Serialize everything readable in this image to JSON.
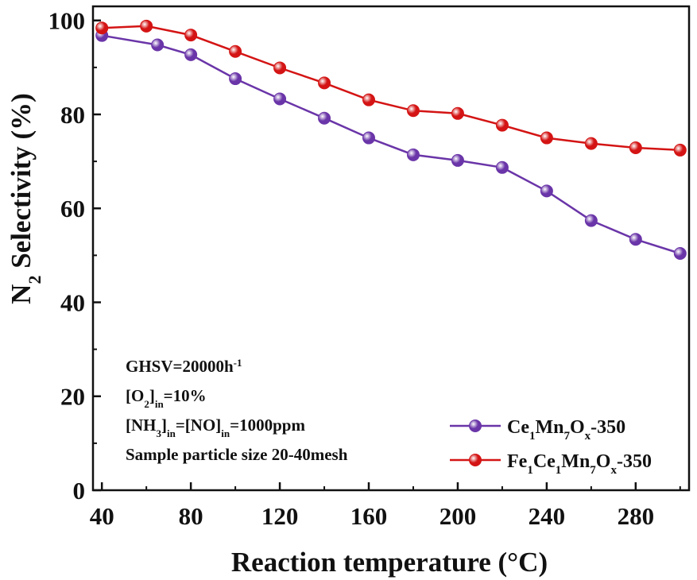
{
  "chart_data": {
    "type": "line",
    "xlabel": "Reaction temperature (°C)",
    "ylabel_main": "N",
    "ylabel_sub": "2",
    "ylabel_rest": " Selectivity (%)",
    "xlim": [
      36,
      304
    ],
    "ylim": [
      0,
      103
    ],
    "xticks": [
      40,
      80,
      120,
      160,
      200,
      240,
      280
    ],
    "yticks": [
      0,
      20,
      40,
      60,
      80,
      100
    ],
    "legend_position": "bottom-right",
    "grid": false,
    "x": [
      40,
      60,
      80,
      100,
      120,
      140,
      160,
      180,
      200,
      220,
      240,
      260,
      280,
      300
    ],
    "series": [
      {
        "id": "ce",
        "legend": [
          [
            "Ce",
            ""
          ],
          [
            "1",
            "sub"
          ],
          [
            "Mn",
            ""
          ],
          [
            "7",
            "sub"
          ],
          [
            "O",
            ""
          ],
          [
            "x",
            "sub"
          ],
          [
            "-350",
            ""
          ]
        ],
        "color": "#6a35a8",
        "x": [
          40,
          65,
          80,
          100,
          120,
          140,
          160,
          180,
          200,
          220,
          240,
          260,
          280,
          300
        ],
        "values": [
          96.8,
          94.8,
          92.7,
          87.6,
          83.3,
          79.2,
          75.0,
          71.4,
          70.2,
          68.7,
          63.7,
          57.4,
          53.4,
          50.4
        ]
      },
      {
        "id": "fe",
        "legend": [
          [
            "Fe",
            ""
          ],
          [
            "1",
            "sub"
          ],
          [
            "Ce",
            ""
          ],
          [
            "1",
            "sub"
          ],
          [
            "Mn",
            ""
          ],
          [
            "7",
            "sub"
          ],
          [
            "O",
            ""
          ],
          [
            "x",
            "sub"
          ],
          [
            "-350",
            ""
          ]
        ],
        "color": "#d41414",
        "x": [
          40,
          60,
          80,
          100,
          120,
          140,
          160,
          180,
          200,
          220,
          240,
          260,
          280,
          300
        ],
        "values": [
          98.4,
          98.8,
          96.9,
          93.4,
          89.9,
          86.7,
          83.1,
          80.8,
          80.2,
          77.7,
          75.0,
          73.8,
          72.9,
          72.4
        ]
      }
    ],
    "notes": [
      [
        [
          "GHSV=20000h",
          ""
        ],
        [
          "-1",
          "sup"
        ]
      ],
      [
        [
          "[O",
          ""
        ],
        [
          "2",
          "sub"
        ],
        [
          "]",
          ""
        ],
        [
          "in",
          "sub"
        ],
        [
          "=10%",
          ""
        ]
      ],
      [
        [
          "[NH",
          ""
        ],
        [
          "3",
          "sub"
        ],
        [
          "]",
          ""
        ],
        [
          "in",
          "sub"
        ],
        [
          "=[NO]",
          ""
        ],
        [
          "in",
          "sub"
        ],
        [
          "=1000ppm",
          ""
        ]
      ],
      [
        [
          "Sample particle size 20-40mesh",
          ""
        ]
      ]
    ]
  }
}
